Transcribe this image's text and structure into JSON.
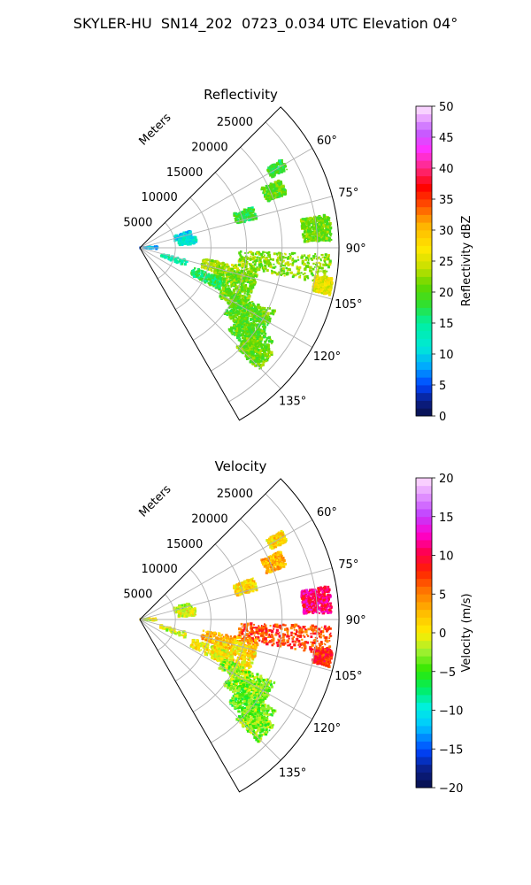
{
  "figure_title": "SKYLER-HU  SN14_202  0723_0.034 UTC Elevation 04°",
  "chart_data": [
    {
      "type": "heatmap",
      "subtype": "polar-sector-ppi",
      "title": "Reflectivity",
      "r_label": "Meters",
      "r_ticks": [
        5000,
        10000,
        15000,
        20000,
        25000
      ],
      "r_tick_labels": [
        "5000",
        "10000",
        "15000",
        "20000",
        "25000"
      ],
      "r_max": 28000,
      "theta_range_deg": [
        45,
        150
      ],
      "theta_ticks": [
        60,
        75,
        90,
        105,
        120,
        135
      ],
      "theta_tick_labels": [
        "60°",
        "75°",
        "90°",
        "105°",
        "120°",
        "135°"
      ],
      "grid": true,
      "colorbar": {
        "label": "Reflectivity dBZ",
        "min": 0,
        "max": 50,
        "ticks": [
          0,
          5,
          10,
          15,
          20,
          25,
          30,
          35,
          40,
          45,
          50
        ],
        "tick_labels": [
          "0",
          "5",
          "10",
          "15",
          "20",
          "25",
          "30",
          "35",
          "40",
          "45",
          "50"
        ]
      },
      "echo_regions": [
        {
          "theta_deg": [
            58,
            62
          ],
          "r_m": [
            21000,
            23500
          ],
          "value": 18
        },
        {
          "theta_deg": [
            70,
            76
          ],
          "r_m": [
            14000,
            17000
          ],
          "value": 18
        },
        {
          "theta_deg": [
            64,
            70
          ],
          "r_m": [
            19000,
            22000
          ],
          "value": 20
        },
        {
          "theta_deg": [
            71,
            79
          ],
          "r_m": [
            5000,
            7500
          ],
          "value": 10
        },
        {
          "theta_deg": [
            78,
            86
          ],
          "r_m": [
            5500,
            8000
          ],
          "value": 12
        },
        {
          "theta_deg": [
            84,
            94
          ],
          "r_m": [
            0,
            2500
          ],
          "value": 8
        },
        {
          "theta_deg": [
            80,
            88
          ],
          "r_m": [
            23000,
            27000
          ],
          "value": 21
        },
        {
          "theta_deg": [
            92,
            101
          ],
          "r_m": [
            14000,
            27000
          ],
          "value": 22
        },
        {
          "theta_deg": [
            99,
            104
          ],
          "r_m": [
            25000,
            27500
          ],
          "value": 26
        },
        {
          "theta_deg": [
            100,
            108
          ],
          "r_m": [
            9000,
            17000
          ],
          "value": 23
        },
        {
          "theta_deg": [
            103,
            118
          ],
          "r_m": [
            11000,
            17000
          ],
          "value": 21
        },
        {
          "theta_deg": [
            110,
            118
          ],
          "r_m": [
            8000,
            13000
          ],
          "value": 17
        },
        {
          "theta_deg": [
            115,
            122
          ],
          "r_m": [
            13000,
            21000
          ],
          "value": 21
        },
        {
          "theta_deg": [
            118,
            128
          ],
          "r_m": [
            15000,
            21000
          ],
          "value": 20
        },
        {
          "theta_deg": [
            124,
            133
          ],
          "r_m": [
            17000,
            23000
          ],
          "value": 20
        },
        {
          "theta_deg": [
            128,
            136
          ],
          "r_m": [
            19500,
            24000
          ],
          "value": 21
        },
        {
          "theta_deg": [
            105,
            112
          ],
          "r_m": [
            3000,
            7000
          ],
          "value": 14
        }
      ]
    },
    {
      "type": "heatmap",
      "subtype": "polar-sector-ppi",
      "title": "Velocity",
      "r_label": "Meters",
      "r_ticks": [
        5000,
        10000,
        15000,
        20000,
        25000
      ],
      "r_tick_labels": [
        "5000",
        "10000",
        "15000",
        "20000",
        "25000"
      ],
      "r_max": 28000,
      "theta_range_deg": [
        45,
        150
      ],
      "theta_ticks": [
        60,
        75,
        90,
        105,
        120,
        135
      ],
      "theta_tick_labels": [
        "60°",
        "75°",
        "90°",
        "105°",
        "120°",
        "135°"
      ],
      "grid": true,
      "colorbar": {
        "label": "Velocity (m/s)",
        "min": -20,
        "max": 20,
        "ticks": [
          -20,
          -15,
          -10,
          -5,
          0,
          5,
          10,
          15,
          20
        ],
        "tick_labels": [
          "−20",
          "−15",
          "−10",
          "−5",
          "0",
          "5",
          "10",
          "15",
          "20"
        ]
      },
      "echo_regions": [
        {
          "theta_deg": [
            58,
            62
          ],
          "r_m": [
            21000,
            23500
          ],
          "value": 1
        },
        {
          "theta_deg": [
            70,
            76
          ],
          "r_m": [
            14000,
            17000
          ],
          "value": 1
        },
        {
          "theta_deg": [
            64,
            70
          ],
          "r_m": [
            19000,
            22000
          ],
          "value": 3
        },
        {
          "theta_deg": [
            71,
            79
          ],
          "r_m": [
            5000,
            7500
          ],
          "value": -2
        },
        {
          "theta_deg": [
            78,
            86
          ],
          "r_m": [
            5500,
            8000
          ],
          "value": 0
        },
        {
          "theta_deg": [
            84,
            94
          ],
          "r_m": [
            0,
            2500
          ],
          "value": -1
        },
        {
          "theta_deg": [
            80,
            88
          ],
          "r_m": [
            23000,
            27000
          ],
          "value": 11
        },
        {
          "theta_deg": [
            92,
            101
          ],
          "r_m": [
            14000,
            27000
          ],
          "value": 7
        },
        {
          "theta_deg": [
            99,
            104
          ],
          "r_m": [
            25000,
            27500
          ],
          "value": 8
        },
        {
          "theta_deg": [
            100,
            108
          ],
          "r_m": [
            9000,
            17000
          ],
          "value": 3
        },
        {
          "theta_deg": [
            103,
            118
          ],
          "r_m": [
            11000,
            17000
          ],
          "value": 1
        },
        {
          "theta_deg": [
            110,
            118
          ],
          "r_m": [
            8000,
            13000
          ],
          "value": 0
        },
        {
          "theta_deg": [
            115,
            122
          ],
          "r_m": [
            13000,
            21000
          ],
          "value": -3
        },
        {
          "theta_deg": [
            118,
            128
          ],
          "r_m": [
            15000,
            21000
          ],
          "value": -3
        },
        {
          "theta_deg": [
            124,
            133
          ],
          "r_m": [
            17000,
            23000
          ],
          "value": -4
        },
        {
          "theta_deg": [
            128,
            136
          ],
          "r_m": [
            19500,
            24000
          ],
          "value": -3
        },
        {
          "theta_deg": [
            105,
            112
          ],
          "r_m": [
            3000,
            7000
          ],
          "value": -1
        }
      ]
    }
  ]
}
